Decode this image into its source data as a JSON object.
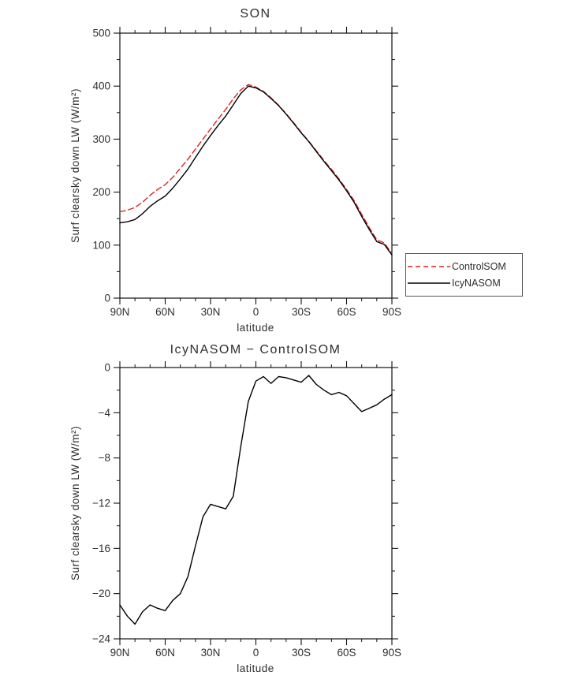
{
  "chart_data": [
    {
      "type": "line",
      "title": "SON",
      "xlabel": "latitude",
      "ylabel": "Surf clearsky down LW (W/m²)",
      "xlim": [
        90,
        -90
      ],
      "ylim": [
        0,
        500
      ],
      "xtick_values": [
        90,
        60,
        30,
        0,
        -30,
        -60,
        -90
      ],
      "xtick_labels": [
        "90N",
        "60N",
        "30N",
        "0",
        "30S",
        "60S",
        "90S"
      ],
      "xminor_step": 10,
      "ytick_values": [
        0,
        100,
        200,
        300,
        400,
        500
      ],
      "ytick_labels": [
        "0",
        "100",
        "200",
        "300",
        "400",
        "500"
      ],
      "yminor_step": 50,
      "grid": false,
      "legend_position": "right-outside",
      "x": [
        90,
        85,
        80,
        75,
        70,
        65,
        60,
        55,
        50,
        45,
        40,
        35,
        30,
        25,
        20,
        15,
        10,
        5,
        0,
        -5,
        -10,
        -15,
        -20,
        -25,
        -30,
        -35,
        -40,
        -45,
        -50,
        -55,
        -60,
        -65,
        -70,
        -75,
        -80,
        -85,
        -90
      ],
      "series": [
        {
          "name": "ControlSOM",
          "color": "#e02020",
          "style": "dashed",
          "values": [
            163,
            166,
            171,
            181,
            194,
            205,
            214,
            228,
            245,
            262,
            281,
            300,
            319,
            338,
            356,
            376,
            393,
            403,
            398,
            390,
            378,
            364,
            348,
            331,
            313,
            296,
            278,
            260,
            243,
            225,
            205,
            184,
            158,
            133,
            110,
            104,
            84
          ]
        },
        {
          "name": "IcyNASOM",
          "color": "#000000",
          "style": "solid",
          "values": [
            142,
            144,
            148.3,
            159.4,
            173,
            183.7,
            192.5,
            207.4,
            225,
            243.5,
            265.2,
            286.8,
            306.9,
            325.7,
            343.5,
            364.6,
            386,
            400,
            396.8,
            389.2,
            376.6,
            363.2,
            347.1,
            329.9,
            311.7,
            295.3,
            276.5,
            258,
            240.6,
            222.8,
            202.5,
            180.8,
            154.1,
            129.4,
            106.7,
            101.2,
            81.6
          ]
        }
      ]
    },
    {
      "type": "line",
      "title": "IcyNASOM − ControlSOM",
      "xlabel": "latitude",
      "ylabel": "Surf clearsky down LW (W/m²)",
      "xlim": [
        90,
        -90
      ],
      "ylim": [
        -24,
        0
      ],
      "xtick_values": [
        90,
        60,
        30,
        0,
        -30,
        -60,
        -90
      ],
      "xtick_labels": [
        "90N",
        "60N",
        "30N",
        "0",
        "30S",
        "60S",
        "90S"
      ],
      "xminor_step": 10,
      "ytick_values": [
        -24,
        -20,
        -16,
        -12,
        -8,
        -4,
        0
      ],
      "ytick_labels": [
        "−24",
        "−20",
        "−16",
        "−12",
        "−8",
        "−4",
        "0"
      ],
      "yminor_step": 2,
      "grid": false,
      "x": [
        90,
        85,
        80,
        75,
        70,
        65,
        60,
        55,
        50,
        45,
        40,
        35,
        30,
        25,
        20,
        15,
        10,
        5,
        0,
        -5,
        -10,
        -15,
        -20,
        -25,
        -30,
        -35,
        -40,
        -45,
        -50,
        -55,
        -60,
        -65,
        -70,
        -75,
        -80,
        -85,
        -90
      ],
      "series": [
        {
          "name": "IcyNASOM − ControlSOM",
          "color": "#000000",
          "style": "solid",
          "values": [
            -21,
            -22,
            -22.7,
            -21.6,
            -21,
            -21.3,
            -21.5,
            -20.6,
            -20,
            -18.5,
            -15.8,
            -13.2,
            -12.1,
            -12.3,
            -12.5,
            -11.4,
            -7,
            -3,
            -1.2,
            -0.8,
            -1.4,
            -0.8,
            -0.9,
            -1.1,
            -1.3,
            -0.7,
            -1.5,
            -2,
            -2.4,
            -2.2,
            -2.5,
            -3.2,
            -3.9,
            -3.6,
            -3.3,
            -2.8,
            -2.4
          ]
        }
      ]
    }
  ]
}
